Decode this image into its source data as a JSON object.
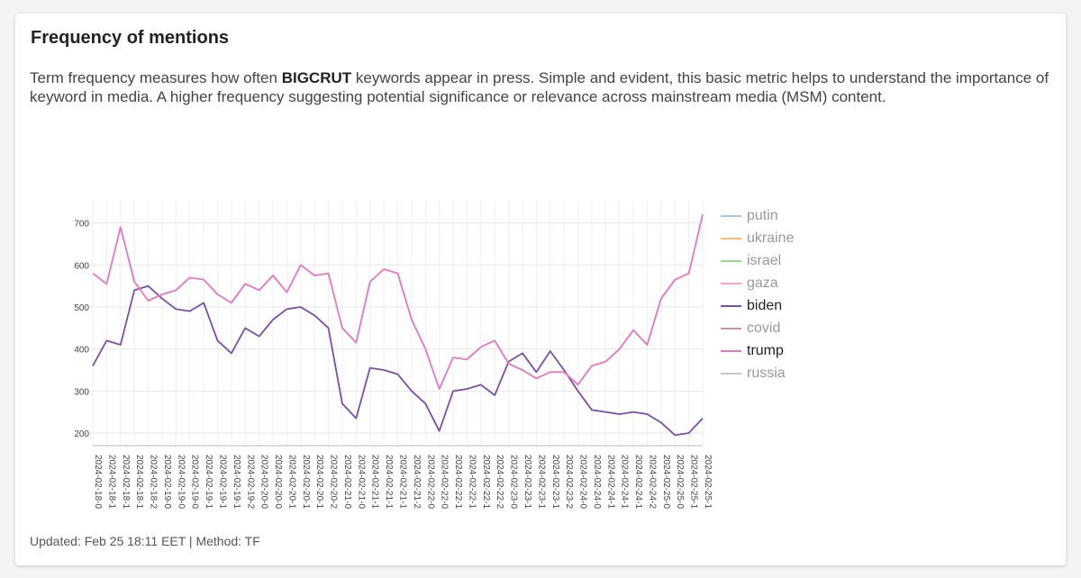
{
  "header": {
    "title": "Frequency of mentions",
    "description": [
      "Term frequency measures how often ",
      "BIGCRUT",
      " keywords appear in press. Simple and evident, this basic metric helps to understand the importance of keyword in media. A higher frequency suggesting potential significance or relevance across mainstream media (MSM) content."
    ]
  },
  "footer": "Updated: Feb 25 18:11 EET | Method: TF",
  "chart_data": {
    "type": "line",
    "categories": [
      "2024-02-18-0",
      "2024-02-18-1",
      "2024-02-18-1",
      "2024-02-18-1",
      "2024-02-18-2",
      "2024-02-19-0",
      "2024-02-19-0",
      "2024-02-19-0",
      "2024-02-19-1",
      "2024-02-19-1",
      "2024-02-19-1",
      "2024-02-19-2",
      "2024-02-20-0",
      "2024-02-20-0",
      "2024-02-20-1",
      "2024-02-20-1",
      "2024-02-20-1",
      "2024-02-20-2",
      "2024-02-21-0",
      "2024-02-21-0",
      "2024-02-21-1",
      "2024-02-21-1",
      "2024-02-21-1",
      "2024-02-21-2",
      "2024-02-22-0",
      "2024-02-22-0",
      "2024-02-22-1",
      "2024-02-22-1",
      "2024-02-22-1",
      "2024-02-22-2",
      "2024-02-23-0",
      "2024-02-23-1",
      "2024-02-23-1",
      "2024-02-23-1",
      "2024-02-23-2",
      "2024-02-24-0",
      "2024-02-24-0",
      "2024-02-24-1",
      "2024-02-24-1",
      "2024-02-24-1",
      "2024-02-24-2",
      "2024-02-25-0",
      "2024-02-25-0",
      "2024-02-25-1",
      "2024-02-25-1"
    ],
    "series": [
      {
        "name": "putin",
        "color": "#a6c8e8",
        "hidden": true
      },
      {
        "name": "ukraine",
        "color": "#ffbb78",
        "hidden": true
      },
      {
        "name": "israel",
        "color": "#98df8a",
        "hidden": true
      },
      {
        "name": "gaza",
        "color": "#f4a3cf",
        "hidden": true
      },
      {
        "name": "biden",
        "color": "#7b4fa6",
        "hidden": false,
        "values": [
          360,
          420,
          410,
          540,
          550,
          520,
          495,
          490,
          510,
          420,
          390,
          450,
          430,
          470,
          495,
          500,
          480,
          450,
          270,
          235,
          355,
          350,
          340,
          300,
          270,
          205,
          300,
          305,
          315,
          290,
          370,
          390,
          345,
          395,
          350,
          300,
          255,
          250,
          245,
          250,
          245,
          225,
          195,
          200,
          235
        ]
      },
      {
        "name": "covid",
        "color": "#c49c94",
        "hidden": true
      },
      {
        "name": "trump",
        "color": "#e377c2",
        "hidden": false,
        "values": [
          580,
          555,
          690,
          560,
          515,
          530,
          540,
          570,
          565,
          530,
          510,
          555,
          540,
          575,
          535,
          600,
          575,
          580,
          450,
          415,
          560,
          590,
          580,
          470,
          400,
          305,
          380,
          375,
          405,
          420,
          365,
          350,
          330,
          345,
          345,
          315,
          360,
          370,
          400,
          445,
          410,
          520,
          565,
          580,
          720
        ]
      },
      {
        "name": "russia",
        "color": "#c7c7c7",
        "hidden": true
      }
    ],
    "ylim": [
      170,
      755
    ],
    "yticks": [
      200,
      300,
      400,
      500,
      600,
      700
    ],
    "grid": true,
    "legend": "right"
  }
}
